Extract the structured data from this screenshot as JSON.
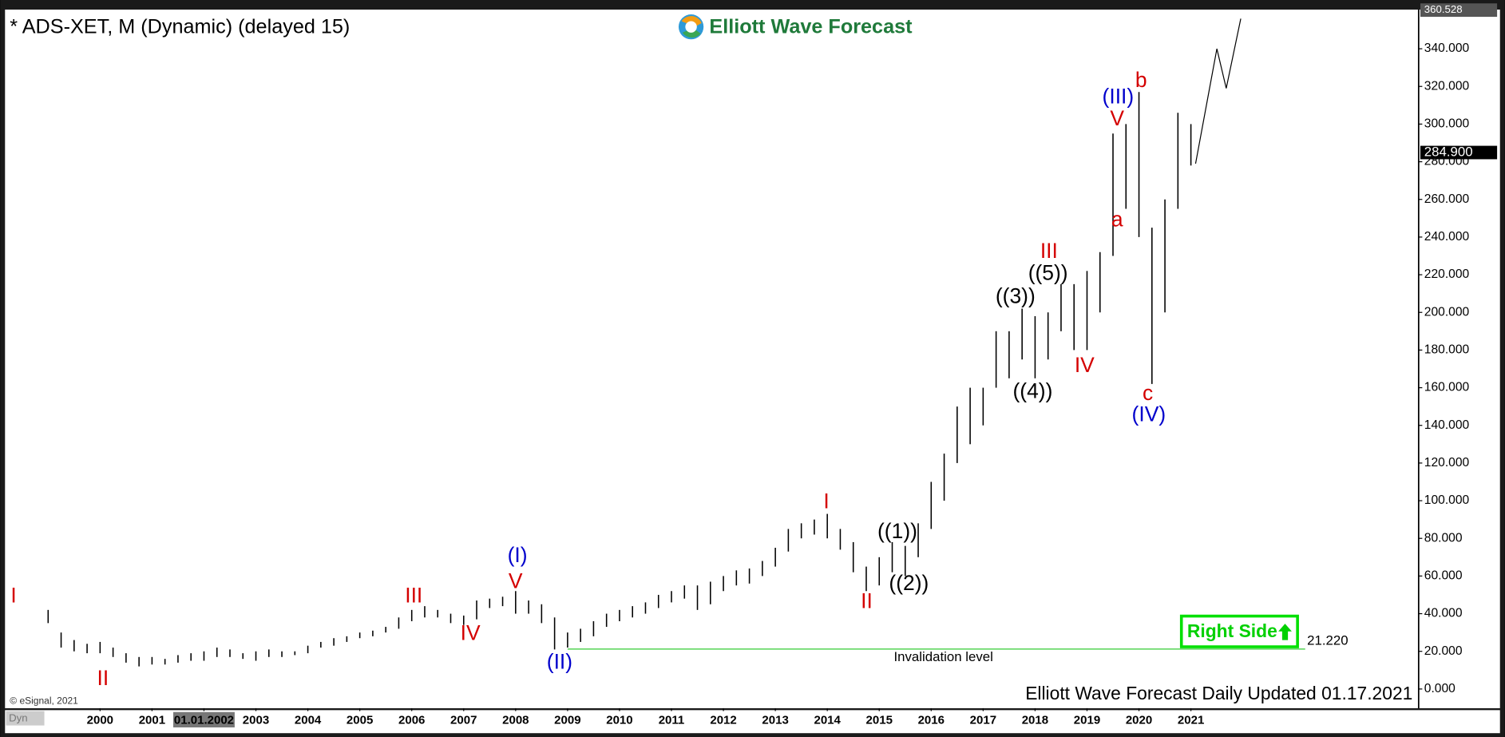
{
  "chart_data": {
    "type": "range_bar",
    "title": "* ADS-XET, M (Dynamic) (delayed 15)",
    "brand": "Elliott Wave Forecast",
    "footer": "Elliott Wave Forecast Daily Updated 01.17.2021",
    "copyright": "© eSignal, 2021",
    "corner_tag": "Dyn",
    "color": "#000000",
    "xlim": [
      1998.17,
      2025.38
    ],
    "ylim": [
      -10.2,
      360.8
    ],
    "yticks": [
      {
        "value": 0,
        "label": "0.000"
      },
      {
        "value": 20,
        "label": "20.000"
      },
      {
        "value": 40,
        "label": "40.000"
      },
      {
        "value": 60,
        "label": "60.000"
      },
      {
        "value": 80,
        "label": "80.000"
      },
      {
        "value": 100,
        "label": "100.000"
      },
      {
        "value": 120,
        "label": "120.000"
      },
      {
        "value": 140,
        "label": "140.000"
      },
      {
        "value": 160,
        "label": "160.000"
      },
      {
        "value": 180,
        "label": "180.000"
      },
      {
        "value": 200,
        "label": "200.000"
      },
      {
        "value": 220,
        "label": "220.000"
      },
      {
        "value": 240,
        "label": "240.000"
      },
      {
        "value": 260,
        "label": "260.000"
      },
      {
        "value": 280,
        "label": "280.000"
      },
      {
        "value": 300,
        "label": "300.000"
      },
      {
        "value": 320,
        "label": "320.000"
      },
      {
        "value": 340,
        "label": "340.000"
      }
    ],
    "xticks": [
      2000,
      2001,
      {
        "value": 2002,
        "label": "01.01.2002"
      },
      2003,
      2004,
      2005,
      2006,
      2007,
      2008,
      2009,
      2010,
      2011,
      2012,
      2013,
      2014,
      2015,
      2016,
      2017,
      2018,
      2019,
      2020,
      2021
    ],
    "x": [
      1999,
      1999.25,
      1999.5,
      1999.75,
      2000,
      2000.25,
      2000.5,
      2000.75,
      2001,
      2001.25,
      2001.5,
      2001.75,
      2002,
      2002.25,
      2002.5,
      2002.75,
      2003,
      2003.25,
      2003.5,
      2003.75,
      2004,
      2004.25,
      2004.5,
      2004.75,
      2005,
      2005.25,
      2005.5,
      2005.75,
      2006,
      2006.25,
      2006.5,
      2006.75,
      2007,
      2007.25,
      2007.5,
      2007.75,
      2008,
      2008.25,
      2008.5,
      2008.75,
      2009,
      2009.25,
      2009.5,
      2009.75,
      2010,
      2010.25,
      2010.5,
      2010.75,
      2011,
      2011.25,
      2011.5,
      2011.75,
      2012,
      2012.25,
      2012.5,
      2012.75,
      2013,
      2013.25,
      2013.5,
      2013.75,
      2014,
      2014.25,
      2014.5,
      2014.75,
      2015,
      2015.25,
      2015.5,
      2015.75,
      2016,
      2016.25,
      2016.5,
      2016.75,
      2017,
      2017.25,
      2017.5,
      2017.75,
      2018,
      2018.25,
      2018.5,
      2018.75,
      2019,
      2019.25,
      2019.5,
      2019.75,
      2020,
      2020.25,
      2020.5,
      2020.75,
      2021
    ],
    "high": [
      42,
      30,
      26,
      24,
      25,
      22,
      19,
      17,
      17,
      16,
      18,
      19,
      20,
      22,
      21,
      19,
      20,
      21,
      20,
      20,
      23,
      25,
      27,
      28,
      30,
      31,
      33,
      38,
      42,
      44,
      42,
      40,
      39,
      47,
      48,
      49,
      52,
      47,
      45,
      38,
      30,
      32,
      36,
      40,
      42,
      44,
      46,
      50,
      52,
      55,
      55,
      57,
      60,
      63,
      64,
      68,
      75,
      85,
      88,
      90,
      93,
      85,
      78,
      65,
      70,
      78,
      76,
      88,
      110,
      125,
      150,
      160,
      160,
      190,
      190,
      202,
      198,
      200,
      215,
      215,
      222,
      232,
      295,
      300,
      317,
      245,
      260,
      306,
      300
    ],
    "low": [
      35,
      22,
      20,
      19,
      19,
      17,
      14,
      12,
      13,
      13,
      14,
      15,
      15,
      17,
      17,
      16,
      15,
      17,
      17,
      18,
      19,
      22,
      23,
      25,
      27,
      28,
      30,
      32,
      36,
      38,
      38,
      35,
      34,
      37,
      43,
      44,
      40,
      40,
      35,
      21,
      22,
      25,
      28,
      33,
      36,
      38,
      40,
      43,
      46,
      48,
      42,
      45,
      52,
      55,
      56,
      60,
      65,
      73,
      80,
      82,
      80,
      74,
      62,
      52,
      55,
      62,
      60,
      70,
      85,
      100,
      120,
      130,
      140,
      160,
      165,
      175,
      165,
      175,
      190,
      180,
      180,
      200,
      230,
      255,
      240,
      162,
      200,
      255,
      278
    ],
    "projection": {
      "x": [
        2021.09,
        2021.5,
        2021.68,
        2021.96
      ],
      "values": [
        279,
        340,
        319,
        356
      ]
    },
    "last_price": {
      "value": 284.9,
      "label": "284.900"
    },
    "high_tag": {
      "value": 360.528,
      "label": "360.528"
    },
    "invalidation": {
      "value": 21.22,
      "label": "21.220",
      "text": "Invalidation level",
      "x": [
        2009,
        2023.2
      ],
      "color": "#33cc33"
    },
    "badge": "Right Side",
    "annotations": [
      {
        "text": "I",
        "color": "#d40000"
      },
      {
        "text": "II",
        "color": "#d40000"
      },
      {
        "text": "III",
        "color": "#d40000"
      },
      {
        "text": "IV",
        "color": "#d40000"
      },
      {
        "text": "V",
        "color": "#d40000"
      },
      {
        "text": "(I)",
        "color": "#0000cc"
      },
      {
        "text": "(II)",
        "color": "#0000cc"
      },
      {
        "text": "I",
        "color": "#d40000"
      },
      {
        "text": "II",
        "color": "#d40000"
      },
      {
        "text": "((1))",
        "color": "#000000"
      },
      {
        "text": "((2))",
        "color": "#000000"
      },
      {
        "text": "((3))",
        "color": "#000000"
      },
      {
        "text": "((4))",
        "color": "#000000"
      },
      {
        "text": "((5))",
        "color": "#000000"
      },
      {
        "text": "III",
        "color": "#d40000"
      },
      {
        "text": "IV",
        "color": "#d40000"
      },
      {
        "text": "V",
        "color": "#d40000"
      },
      {
        "text": "(III)",
        "color": "#0000cc"
      },
      {
        "text": "a",
        "color": "#d40000"
      },
      {
        "text": "b",
        "color": "#d40000"
      },
      {
        "text": "c",
        "color": "#d40000"
      },
      {
        "text": "(IV)",
        "color": "#0000cc"
      }
    ]
  }
}
